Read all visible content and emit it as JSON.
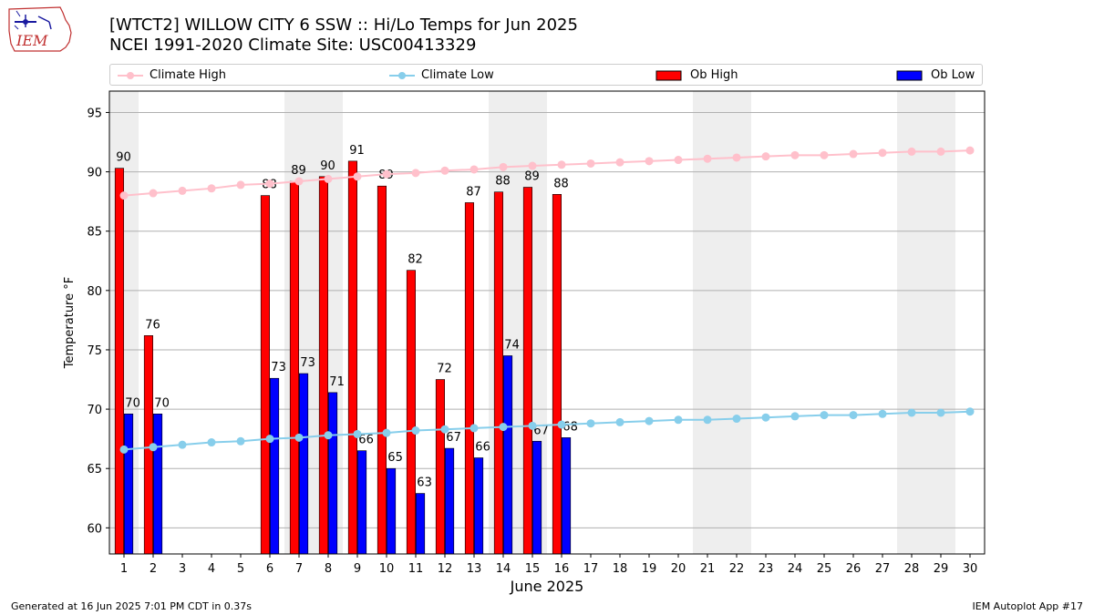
{
  "header": {
    "logo_text": "IEM",
    "title": "[WTCT2] WILLOW CITY 6 SSW :: Hi/Lo Temps for Jun 2025",
    "subtitle": "NCEI 1991-2020 Climate Site: USC00413329"
  },
  "legend": {
    "climate_high": "Climate High",
    "climate_low": "Climate Low",
    "ob_high": "Ob High",
    "ob_low": "Ob Low"
  },
  "colors": {
    "ob_high": "#ff0000",
    "ob_low": "#0000ff",
    "climate_high": "#ffc0cb",
    "climate_low": "#87ceeb",
    "weekend_band": "#eeeeee",
    "grid": "#b0b0b0"
  },
  "chart_data": {
    "type": "bar",
    "title": "[WTCT2] WILLOW CITY 6 SSW :: Hi/Lo Temps for Jun 2025",
    "subtitle": "NCEI 1991-2020 Climate Site: USC00413329",
    "xlabel": "June 2025",
    "ylabel": "Temperature °F",
    "ylim": [
      57.8,
      96.8
    ],
    "yticks": [
      60,
      65,
      70,
      75,
      80,
      85,
      90,
      95
    ],
    "grid": "horizontal",
    "legend_position": "top",
    "categories": [
      1,
      2,
      3,
      4,
      5,
      6,
      7,
      8,
      9,
      10,
      11,
      12,
      13,
      14,
      15,
      16,
      17,
      18,
      19,
      20,
      21,
      22,
      23,
      24,
      25,
      26,
      27,
      28,
      29,
      30
    ],
    "weekend_days": [
      1,
      7,
      8,
      14,
      15,
      21,
      22,
      28,
      29
    ],
    "series": [
      {
        "name": "Ob High",
        "kind": "bar",
        "values": [
          90.3,
          76.2,
          null,
          null,
          null,
          88.0,
          89.2,
          89.6,
          90.9,
          88.8,
          81.7,
          72.5,
          87.4,
          88.3,
          88.7,
          88.1,
          null,
          null,
          null,
          null,
          null,
          null,
          null,
          null,
          null,
          null,
          null,
          null,
          null,
          null
        ],
        "labels": [
          "90",
          "76",
          "",
          "",
          "",
          "88",
          "89",
          "90",
          "91",
          "89",
          "82",
          "72",
          "87",
          "88",
          "89",
          "88",
          "",
          "",
          "",
          "",
          "",
          "",
          "",
          "",
          "",
          "",
          "",
          "",
          "",
          ""
        ]
      },
      {
        "name": "Ob Low",
        "kind": "bar",
        "values": [
          69.6,
          69.6,
          null,
          null,
          null,
          72.6,
          73.0,
          71.4,
          66.5,
          65.0,
          62.9,
          66.7,
          65.9,
          74.5,
          67.3,
          67.6,
          null,
          null,
          null,
          null,
          null,
          null,
          null,
          null,
          null,
          null,
          null,
          null,
          null,
          null
        ],
        "labels": [
          "70",
          "70",
          "",
          "",
          "",
          "73",
          "73",
          "71",
          "66",
          "65",
          "63",
          "67",
          "66",
          "74",
          "67",
          "68",
          "",
          "",
          "",
          "",
          "",
          "",
          "",
          "",
          "",
          "",
          "",
          "",
          "",
          ""
        ]
      },
      {
        "name": "Climate High",
        "kind": "line",
        "values": [
          88.0,
          88.2,
          88.4,
          88.6,
          88.9,
          89.0,
          89.2,
          89.4,
          89.6,
          89.8,
          89.9,
          90.1,
          90.2,
          90.4,
          90.5,
          90.6,
          90.7,
          90.8,
          90.9,
          91.0,
          91.1,
          91.2,
          91.3,
          91.4,
          91.4,
          91.5,
          91.6,
          91.7,
          91.7,
          91.8
        ]
      },
      {
        "name": "Climate Low",
        "kind": "line",
        "values": [
          66.6,
          66.8,
          67.0,
          67.2,
          67.3,
          67.5,
          67.6,
          67.8,
          67.9,
          68.0,
          68.2,
          68.3,
          68.4,
          68.5,
          68.6,
          68.7,
          68.8,
          68.9,
          69.0,
          69.1,
          69.1,
          69.2,
          69.3,
          69.4,
          69.5,
          69.5,
          69.6,
          69.7,
          69.7,
          69.8
        ]
      }
    ]
  },
  "footer": {
    "left": "Generated at 16 Jun 2025 7:01 PM CDT in 0.37s",
    "right": "IEM Autoplot App #17"
  }
}
